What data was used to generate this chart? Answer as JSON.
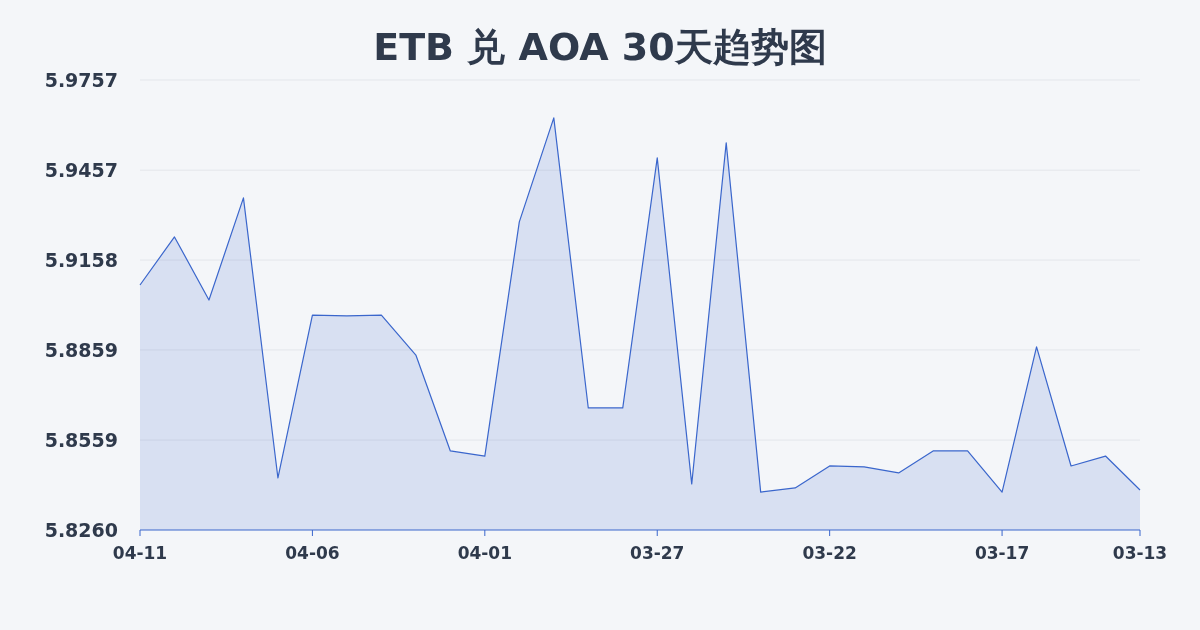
{
  "chart_data": {
    "type": "area",
    "title": "ETB 兑 AOA 30天趋势图",
    "categories": [
      "04-11",
      null,
      null,
      null,
      null,
      "04-06",
      null,
      null,
      null,
      null,
      "04-01",
      null,
      null,
      null,
      null,
      "03-27",
      null,
      null,
      null,
      null,
      "03-22",
      null,
      null,
      null,
      null,
      "03-17",
      null,
      null,
      null,
      "03-13"
    ],
    "series": [
      {
        "color": "#3a66cc",
        "values": [
          5.9075,
          5.9235,
          5.9025,
          5.9365,
          5.8433,
          5.8975,
          5.8972,
          5.8975,
          5.8842,
          5.8523,
          5.8506,
          5.9285,
          5.9631,
          5.8666,
          5.8666,
          5.9498,
          5.8413,
          5.9548,
          5.8386,
          5.84,
          5.8473,
          5.847,
          5.845,
          5.8523,
          5.8523,
          5.8386,
          5.8869,
          5.8473,
          5.8506,
          5.8393
        ]
      }
    ],
    "ylim": [
      5.826,
      5.9757
    ],
    "yticks": [
      {
        "value": 5.826,
        "label": "5.8260"
      },
      {
        "value": 5.8559,
        "label": "5.8559"
      },
      {
        "value": 5.8859,
        "label": "5.8859"
      },
      {
        "value": 5.9158,
        "label": "5.9158"
      },
      {
        "value": 5.9457,
        "label": "5.9457"
      },
      {
        "value": 5.9757,
        "label": "5.9757"
      }
    ],
    "grid": "y"
  }
}
